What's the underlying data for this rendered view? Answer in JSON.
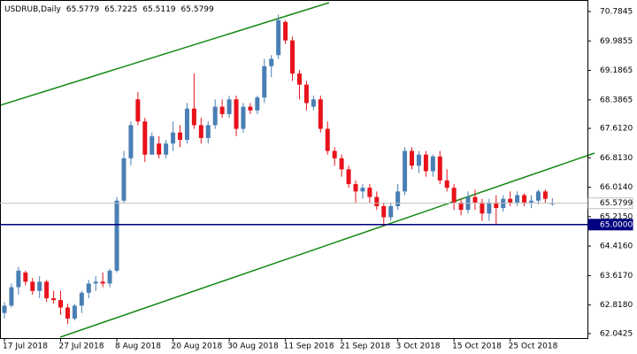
{
  "chart_data": {
    "type": "candlestick",
    "title": "USDRUB,Daily",
    "categories": [
      "17 Jul 2018",
      null,
      null,
      null,
      null,
      null,
      null,
      null,
      "27 Jul 2018",
      null,
      null,
      null,
      null,
      null,
      null,
      null,
      "8 Aug 2018",
      null,
      null,
      null,
      null,
      null,
      null,
      null,
      "20 Aug 2018",
      null,
      null,
      null,
      null,
      null,
      null,
      null,
      "30 Aug 2018",
      null,
      null,
      null,
      null,
      null,
      null,
      null,
      "11 Sep 2018",
      null,
      null,
      null,
      null,
      null,
      null,
      null,
      "21 Sep 2018",
      null,
      null,
      null,
      null,
      null,
      null,
      null,
      "3 Oct 2018",
      null,
      null,
      null,
      null,
      null,
      null,
      null,
      "15 Oct 2018",
      null,
      null,
      null,
      null,
      null,
      null,
      null,
      "25 Oct 2018",
      null,
      null,
      null,
      null,
      null,
      null
    ],
    "open": [
      62.6,
      62.8,
      63.3,
      63.7,
      63.45,
      63.2,
      63.45,
      63.0,
      62.95,
      62.75,
      62.45,
      62.8,
      63.15,
      63.4,
      63.45,
      63.4,
      63.75,
      65.65,
      66.8,
      68.4,
      67.8,
      66.9,
      67.2,
      66.9,
      67.2,
      67.5,
      67.3,
      68.15,
      67.7,
      67.35,
      67.7,
      68.2,
      68.0,
      68.4,
      67.6,
      68.2,
      68.1,
      68.45,
      69.3,
      69.6,
      70.5,
      70.0,
      69.1,
      68.8,
      68.2,
      68.4,
      67.6,
      67.0,
      66.8,
      66.5,
      66.1,
      65.9,
      66.0,
      65.75,
      65.5,
      65.2,
      65.5,
      65.9,
      67.0,
      66.6,
      66.9,
      66.45,
      66.85,
      66.2,
      66.0,
      65.6,
      65.4,
      65.75,
      65.6,
      65.3,
      65.6,
      65.45,
      65.7,
      65.6,
      65.8,
      65.6,
      65.65,
      65.9,
      65.5779
    ],
    "high": [
      62.9,
      63.4,
      63.85,
      63.75,
      63.55,
      63.6,
      63.5,
      63.2,
      63.2,
      62.85,
      62.85,
      63.2,
      63.5,
      63.6,
      63.7,
      63.8,
      65.75,
      67.0,
      67.8,
      68.6,
      67.9,
      67.5,
      67.4,
      67.3,
      67.8,
      67.7,
      68.3,
      69.1,
      67.9,
      67.8,
      68.4,
      68.4,
      68.5,
      68.5,
      68.3,
      68.3,
      68.5,
      69.5,
      69.6,
      70.7,
      70.55,
      70.1,
      69.2,
      68.9,
      68.5,
      68.5,
      67.8,
      67.1,
      66.9,
      66.6,
      66.2,
      66.1,
      66.1,
      65.9,
      65.6,
      65.6,
      66.1,
      67.1,
      67.1,
      67.0,
      67.0,
      66.9,
      67.0,
      66.5,
      66.1,
      65.7,
      65.9,
      65.95,
      65.7,
      65.7,
      65.8,
      65.8,
      65.9,
      65.9,
      65.85,
      65.8,
      65.95,
      65.95,
      65.7225
    ],
    "low": [
      62.45,
      62.75,
      63.1,
      63.35,
      63.1,
      63.0,
      62.9,
      62.85,
      62.55,
      62.3,
      62.4,
      62.6,
      63.0,
      63.2,
      63.3,
      63.3,
      63.7,
      65.6,
      66.6,
      67.7,
      66.7,
      66.9,
      66.8,
      66.8,
      67.0,
      67.1,
      67.2,
      67.6,
      67.2,
      67.2,
      67.6,
      67.9,
      67.9,
      67.4,
      67.5,
      68.0,
      68.0,
      68.3,
      69.0,
      69.5,
      69.9,
      68.9,
      68.4,
      68.1,
      68.1,
      67.5,
      66.9,
      66.6,
      66.3,
      66.0,
      65.6,
      65.7,
      65.6,
      65.4,
      64.95,
      65.1,
      65.4,
      65.8,
      66.5,
      66.4,
      66.3,
      66.3,
      66.1,
      65.9,
      65.4,
      65.25,
      65.3,
      65.4,
      65.1,
      65.1,
      65.0,
      65.35,
      65.5,
      65.5,
      65.5,
      65.45,
      65.55,
      65.6,
      65.5119
    ],
    "close": [
      62.8,
      63.3,
      63.75,
      63.45,
      63.2,
      63.45,
      63.0,
      62.95,
      62.75,
      62.45,
      62.8,
      63.15,
      63.4,
      63.45,
      63.4,
      63.75,
      65.65,
      66.8,
      67.7,
      67.8,
      66.9,
      67.4,
      66.9,
      67.2,
      67.5,
      67.3,
      68.15,
      67.7,
      67.35,
      67.7,
      68.2,
      68.0,
      68.4,
      67.6,
      68.2,
      68.1,
      68.45,
      69.3,
      69.5,
      70.55,
      70.0,
      69.1,
      68.8,
      68.3,
      68.4,
      67.6,
      67.0,
      66.8,
      66.5,
      66.1,
      65.9,
      66.0,
      65.75,
      65.5,
      65.2,
      65.5,
      65.9,
      67.0,
      66.6,
      66.9,
      66.45,
      66.85,
      66.2,
      66.0,
      65.6,
      65.4,
      65.75,
      65.6,
      65.3,
      65.6,
      65.45,
      65.7,
      65.6,
      65.8,
      65.6,
      65.65,
      65.9,
      65.7,
      65.5799
    ],
    "up_color": "#4a7fb5",
    "down_color": "#e8121b",
    "ylim": [
      61.92,
      71.097
    ],
    "yticks": [
      70.7845,
      69.9855,
      69.1865,
      68.3865,
      {
        "value": 67.612,
        "label": "67.6120"
      },
      {
        "value": 66.813,
        "label": "66.8130"
      },
      {
        "value": 66.014,
        "label": "66.0140"
      },
      {
        "value": 65.215,
        "label": "65.2150"
      },
      {
        "value": 64.416,
        "label": "64.4160"
      },
      {
        "value": 63.617,
        "label": "63.6170"
      },
      {
        "value": 62.818,
        "label": "62.8180"
      },
      62.0425
    ],
    "price_lines": [
      {
        "value": 65.5799,
        "color": "#c0c0c0",
        "label_bg": "#ffffff",
        "label_color": "#000000"
      },
      {
        "value": {
          "value": 65,
          "label": "65.0000"
        },
        "color": "#000080",
        "label_bg": "#000080",
        "label_color": "#ffffff"
      }
    ]
  }
}
